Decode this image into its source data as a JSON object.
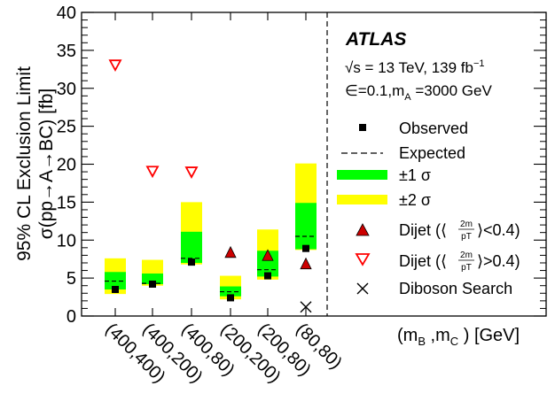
{
  "chart_data": {
    "type": "scatter",
    "ylabel": "95% CL Exclusion Limit σ(pp→A→BC) [fb]",
    "xlabel": "(m_B ,m_C ) [GeV]",
    "ylim": [
      0,
      40
    ],
    "yticks": [
      "0",
      "5",
      "10",
      "15",
      "20",
      "25",
      "30",
      "35",
      "40"
    ],
    "categories": [
      "(400,400)",
      "(400,200)",
      "(400,80)",
      "(200,200)",
      "(200,80)",
      "(80,80)"
    ],
    "experiment": "ATLAS",
    "energy_text": "√s = 13 TeV, 139 fb⁻¹",
    "model_text": "∈=0.1,m_A =3000 GeV",
    "series": [
      {
        "name": "Observed",
        "values": [
          3.5,
          4.2,
          7.1,
          2.4,
          5.3,
          8.9
        ]
      },
      {
        "name": "Expected",
        "values": [
          4.6,
          4.3,
          7.6,
          3.2,
          6.1,
          10.5
        ]
      },
      {
        "name": "±1 σ",
        "low": [
          3.5,
          4.2,
          7.0,
          2.6,
          5.2,
          8.8
        ],
        "high": [
          5.8,
          5.6,
          11.1,
          3.9,
          8.6,
          14.9
        ]
      },
      {
        "name": "±2 σ",
        "low": [
          2.9,
          4.0,
          6.8,
          2.2,
          4.8,
          8.7
        ],
        "high": [
          7.6,
          7.4,
          15.0,
          5.3,
          11.4,
          20.1
        ]
      },
      {
        "name": "Dijet (⟨2m/pT⟩<0.4)",
        "values": [
          null,
          null,
          null,
          8.3,
          7.9,
          6.8
        ]
      },
      {
        "name": "Dijet (⟨2m/pT⟩>0.4)",
        "values": [
          33.1,
          19.1,
          19.0,
          null,
          null,
          null
        ]
      },
      {
        "name": "Diboson Search",
        "values": [
          null,
          null,
          null,
          null,
          null,
          1.2
        ]
      }
    ],
    "legend": {
      "placement": "right",
      "entries": [
        "Observed",
        "Expected",
        "±1 σ",
        "±2 σ",
        "Dijet (",
        "2m",
        "pT",
        "<0.4)",
        "Dijet (",
        ">0.4)",
        "Diboson Search"
      ]
    },
    "colors": {
      "green": "#00ff00",
      "yellow": "#ffff00",
      "red": "#ff0000",
      "marker": "#000000",
      "dijet_fill": "#cc0000"
    },
    "grid": false
  }
}
